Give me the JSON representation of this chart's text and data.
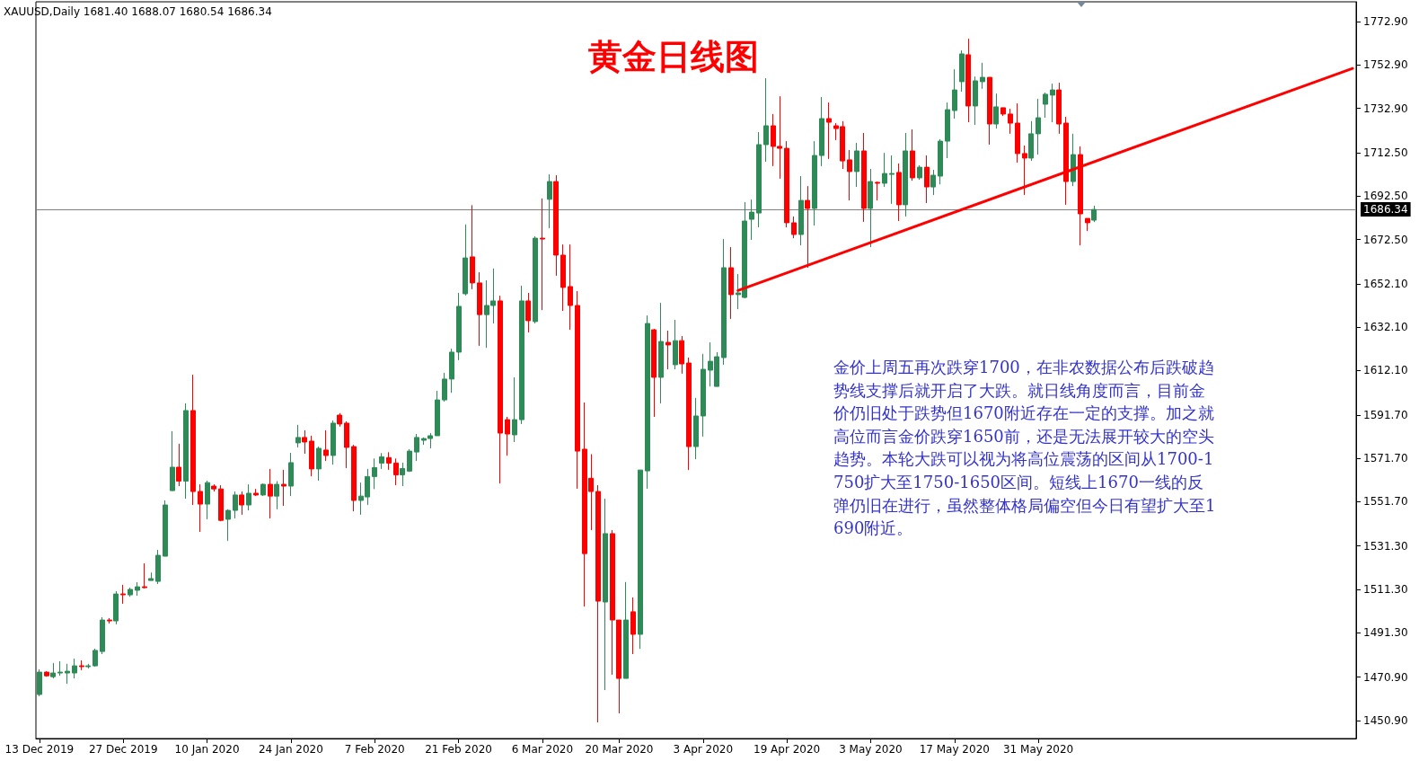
{
  "chart_data": {
    "type": "candlestick",
    "title": "黄金日线图",
    "annotations": [
      "XAUUSD,Daily 1681.40 1688.07 1680.54 1686.34",
      "金价上周五再次跌穿1700，在非农数据公布后跌破趋势线支撑后就开启了大跌。就日线角度而言，目前金价仍旧处于跌势但1670附近存在一定的支撑。加之就高位而言金价跌穿1650前，还是无法展开较大的空头趋势。本轮大跌可以视为将高位震荡的区间从1700-1750扩大至1750-1650区间。短线上1670一线的反弹仍旧在进行，虽然整体格局偏空但今日有望扩大至1690附近。"
    ],
    "categories": [
      "13 Dec 2019",
      null,
      null,
      null,
      null,
      null,
      null,
      null,
      null,
      null,
      null,
      null,
      "27 Dec 2019",
      null,
      null,
      null,
      null,
      null,
      null,
      null,
      null,
      null,
      null,
      null,
      "10 Jan 2020",
      null,
      null,
      null,
      null,
      null,
      null,
      null,
      null,
      null,
      null,
      null,
      "24 Jan 2020",
      null,
      null,
      null,
      null,
      null,
      null,
      null,
      null,
      null,
      null,
      null,
      "7 Feb 2020",
      null,
      null,
      null,
      null,
      null,
      null,
      null,
      null,
      null,
      null,
      null,
      "21 Feb 2020",
      null,
      null,
      null,
      null,
      null,
      null,
      null,
      null,
      null,
      null,
      null,
      "6 Mar 2020",
      null,
      null,
      null,
      null,
      null,
      null,
      null,
      null,
      null,
      null,
      "20 Mar 2020",
      null,
      null,
      null,
      null,
      null,
      null,
      null,
      null,
      null,
      null,
      null,
      "3 Apr 2020",
      null,
      null,
      null,
      null,
      null,
      null,
      null,
      null,
      null,
      null,
      null,
      "19 Apr 2020",
      null,
      null,
      null,
      null,
      null,
      null,
      null,
      null,
      null,
      null,
      null,
      "3 May 2020",
      null,
      null,
      null,
      null,
      null,
      null,
      null,
      null,
      null,
      null,
      null,
      "17 May 2020",
      null,
      null,
      null,
      null,
      null,
      null,
      null,
      null,
      null,
      null,
      null,
      "31 May 2020",
      null,
      null,
      null,
      null,
      null,
      null,
      null,
      null,
      null,
      null,
      null,
      null,
      null,
      null,
      null,
      null,
      null,
      null,
      null,
      null,
      null,
      null,
      null,
      null,
      null,
      null,
      null,
      null,
      null,
      null,
      null,
      null,
      null,
      null,
      null,
      null,
      null,
      null,
      null,
      null,
      null,
      null,
      null,
      null,
      null
    ],
    "ohlc": [
      [
        1462.9,
        1474.5,
        1462.1,
        1473.2
      ],
      [
        1473.2,
        1473.6,
        1471.1,
        1471.5
      ],
      [
        1471.1,
        1477.4,
        1470.3,
        1472.8
      ],
      [
        1472.8,
        1478.2,
        1471.5,
        1473.2
      ],
      [
        1472.8,
        1477.0,
        1467.8,
        1473.6
      ],
      [
        1472.8,
        1479.4,
        1470.3,
        1476.1
      ],
      [
        1476.1,
        1478.6,
        1474.1,
        1475.7
      ],
      [
        1475.7,
        1477.0,
        1474.9,
        1476.1
      ],
      [
        1476.1,
        1484.0,
        1475.7,
        1483.2
      ],
      [
        1482.7,
        1498.5,
        1481.5,
        1497.2
      ],
      [
        1497.2,
        1498.1,
        1495.6,
        1496.8
      ],
      [
        1496.8,
        1510.5,
        1495.2,
        1509.2
      ],
      [
        1509.2,
        1513.4,
        1504.7,
        1508.8
      ],
      [
        1508.8,
        1512.1,
        1507.9,
        1511.3
      ],
      [
        1510.9,
        1514.6,
        1508.4,
        1512.5
      ],
      [
        1512.5,
        1523.3,
        1511.7,
        1512.1
      ],
      [
        1515.4,
        1519.1,
        1515.4,
        1516.3
      ],
      [
        1515.0,
        1529.5,
        1513.8,
        1527.0
      ],
      [
        1526.6,
        1552.3,
        1526.6,
        1550.2
      ],
      [
        1556.8,
        1584.2,
        1556.8,
        1567.6
      ],
      [
        1567.6,
        1578.4,
        1558.9,
        1561.2
      ],
      [
        1561.2,
        1597.0,
        1553.1,
        1593.7
      ],
      [
        1593.7,
        1610.2,
        1550.2,
        1556.4
      ],
      [
        1556.4,
        1559.7,
        1537.8,
        1550.6
      ],
      [
        1550.6,
        1561.4,
        1543.6,
        1560.5
      ],
      [
        1558.9,
        1559.7,
        1556.4,
        1557.6
      ],
      [
        1557.6,
        1559.3,
        1542.7,
        1543.1
      ],
      [
        1543.6,
        1548.2,
        1533.7,
        1547.7
      ],
      [
        1547.7,
        1556.4,
        1544.0,
        1554.8
      ],
      [
        1554.8,
        1556.4,
        1545.7,
        1550.2
      ],
      [
        1550.2,
        1559.7,
        1547.7,
        1555.6
      ],
      [
        1555.6,
        1557.6,
        1554.3,
        1554.8
      ],
      [
        1554.8,
        1560.1,
        1554.3,
        1559.7
      ],
      [
        1559.7,
        1566.8,
        1544.0,
        1554.3
      ],
      [
        1554.3,
        1561.2,
        1548.2,
        1559.7
      ],
      [
        1559.7,
        1566.4,
        1549.8,
        1558.9
      ],
      [
        1558.9,
        1574.2,
        1554.3,
        1569.7
      ],
      [
        1578.8,
        1587.1,
        1576.7,
        1581.3
      ],
      [
        1581.3,
        1584.6,
        1573.8,
        1579.2
      ],
      [
        1579.6,
        1582.1,
        1563.4,
        1566.8
      ],
      [
        1566.8,
        1577.1,
        1561.4,
        1576.3
      ],
      [
        1575.5,
        1584.6,
        1570.5,
        1573.0
      ],
      [
        1573.0,
        1589.1,
        1568.8,
        1587.9
      ],
      [
        1591.6,
        1592.5,
        1586.3,
        1587.5
      ],
      [
        1587.9,
        1588.7,
        1567.2,
        1576.7
      ],
      [
        1577.1,
        1577.9,
        1547.3,
        1552.3
      ],
      [
        1552.3,
        1560.5,
        1545.7,
        1554.3
      ],
      [
        1553.9,
        1566.8,
        1550.2,
        1563.3
      ],
      [
        1563.3,
        1571.6,
        1557.5,
        1567.4
      ],
      [
        1569.5,
        1574.1,
        1566.8,
        1572.4
      ],
      [
        1572.0,
        1574.5,
        1566.4,
        1569.5
      ],
      [
        1569.5,
        1571.6,
        1559.3,
        1564.1
      ],
      [
        1564.1,
        1569.7,
        1558.9,
        1567.0
      ],
      [
        1565.8,
        1575.9,
        1565.4,
        1575.0
      ],
      [
        1574.6,
        1582.9,
        1570.5,
        1581.3
      ],
      [
        1580.0,
        1581.3,
        1577.9,
        1580.8
      ],
      [
        1580.8,
        1583.3,
        1576.3,
        1582.1
      ],
      [
        1582.1,
        1602.8,
        1582.1,
        1598.6
      ],
      [
        1598.6,
        1611.1,
        1597.8,
        1608.2
      ],
      [
        1608.2,
        1622.2,
        1601.9,
        1620.6
      ],
      [
        1620.6,
        1647.9,
        1616.9,
        1641.7
      ],
      [
        1647.5,
        1679.4,
        1646.7,
        1664.0
      ],
      [
        1664.5,
        1688.3,
        1649.6,
        1652.5
      ],
      [
        1652.5,
        1657.4,
        1623.5,
        1637.9
      ],
      [
        1637.9,
        1653.7,
        1622.6,
        1642.1
      ],
      [
        1642.1,
        1659.1,
        1633.8,
        1644.2
      ],
      [
        1644.2,
        1646.6,
        1560.1,
        1583.3
      ],
      [
        1589.5,
        1590.8,
        1572.9,
        1582.9
      ],
      [
        1582.5,
        1609.0,
        1579.2,
        1589.5
      ],
      [
        1589.5,
        1651.2,
        1587.5,
        1644.2
      ],
      [
        1644.2,
        1647.9,
        1629.7,
        1635.1
      ],
      [
        1634.7,
        1674.0,
        1633.8,
        1673.1
      ],
      [
        1673.1,
        1691.4,
        1640.0,
        1672.7
      ],
      [
        1691.0,
        1702.5,
        1677.7,
        1699.2
      ],
      [
        1699.2,
        1702.1,
        1655.8,
        1665.3
      ],
      [
        1665.3,
        1670.2,
        1639.6,
        1650.4
      ],
      [
        1650.8,
        1670.2,
        1630.9,
        1642.1
      ],
      [
        1642.1,
        1648.7,
        1557.7,
        1575.0
      ],
      [
        1575.9,
        1597.4,
        1503.4,
        1527.8
      ],
      [
        1562.5,
        1573.6,
        1538.6,
        1556.4
      ],
      [
        1556.4,
        1559.3,
        1450.0,
        1505.9
      ],
      [
        1505.5,
        1553.1,
        1464.9,
        1537.0
      ],
      [
        1537.0,
        1538.6,
        1472.0,
        1497.2
      ],
      [
        1497.2,
        1497.2,
        1454.2,
        1470.3
      ],
      [
        1470.3,
        1514.7,
        1470.3,
        1497.2
      ],
      [
        1501.0,
        1507.6,
        1481.5,
        1490.6
      ],
      [
        1490.6,
        1566.3,
        1483.9,
        1566.3
      ],
      [
        1565.9,
        1637.5,
        1557.7,
        1633.8
      ],
      [
        1630.9,
        1631.3,
        1590.8,
        1609.0
      ],
      [
        1609.0,
        1643.3,
        1597.0,
        1625.5
      ],
      [
        1625.1,
        1630.5,
        1612.7,
        1623.9
      ],
      [
        1614.8,
        1635.5,
        1612.7,
        1625.9
      ],
      [
        1625.9,
        1628.0,
        1610.7,
        1615.2
      ],
      [
        1615.6,
        1618.1,
        1566.3,
        1577.1
      ],
      [
        1577.1,
        1599.5,
        1571.3,
        1591.2
      ],
      [
        1591.2,
        1619.8,
        1581.7,
        1612.7
      ],
      [
        1612.3,
        1625.1,
        1604.8,
        1616.4
      ],
      [
        1604.8,
        1620.6,
        1604.8,
        1618.5
      ],
      [
        1618.1,
        1672.7,
        1614.8,
        1659.5
      ],
      [
        1659.5,
        1669.0,
        1635.9,
        1647.1
      ],
      [
        1647.1,
        1656.6,
        1640.4,
        1647.9
      ],
      [
        1645.8,
        1689.7,
        1645.4,
        1681.0
      ],
      [
        1681.8,
        1690.9,
        1672.3,
        1685.1
      ],
      [
        1684.7,
        1722.0,
        1678.1,
        1716.2
      ],
      [
        1716.2,
        1746.8,
        1708.3,
        1724.9
      ],
      [
        1724.9,
        1730.3,
        1706.3,
        1715.4
      ],
      [
        1715.4,
        1738.5,
        1700.5,
        1714.5
      ],
      [
        1714.5,
        1717.8,
        1678.1,
        1680.2
      ],
      [
        1680.2,
        1683.1,
        1673.1,
        1674.8
      ],
      [
        1674.8,
        1701.7,
        1669.8,
        1690.5
      ],
      [
        1690.5,
        1697.1,
        1659.5,
        1686.8
      ],
      [
        1686.8,
        1717.8,
        1678.9,
        1711.2
      ],
      [
        1711.2,
        1738.1,
        1706.3,
        1728.2
      ],
      [
        1728.2,
        1735.6,
        1709.6,
        1726.5
      ],
      [
        1724.9,
        1726.1,
        1718.3,
        1723.6
      ],
      [
        1724.5,
        1727.0,
        1705.0,
        1708.7
      ],
      [
        1709.2,
        1713.7,
        1690.5,
        1703.8
      ],
      [
        1703.8,
        1717.0,
        1696.7,
        1713.3
      ],
      [
        1713.3,
        1721.6,
        1680.6,
        1686.8
      ],
      [
        1686.8,
        1705.0,
        1669.0,
        1699.2
      ],
      [
        1698.8,
        1699.2,
        1690.5,
        1698.4
      ],
      [
        1698.4,
        1712.4,
        1696.7,
        1702.9
      ],
      [
        1702.5,
        1711.2,
        1688.9,
        1702.9
      ],
      [
        1703.4,
        1707.5,
        1681.0,
        1688.5
      ],
      [
        1688.5,
        1721.6,
        1683.1,
        1713.3
      ],
      [
        1713.3,
        1723.2,
        1699.6,
        1700.9
      ],
      [
        1700.9,
        1706.7,
        1700.0,
        1705.8
      ],
      [
        1705.8,
        1711.2,
        1689.3,
        1696.7
      ],
      [
        1696.7,
        1704.6,
        1693.0,
        1702.1
      ],
      [
        1701.7,
        1718.7,
        1697.9,
        1717.8
      ],
      [
        1717.8,
        1735.6,
        1710.0,
        1732.3
      ],
      [
        1731.9,
        1750.9,
        1728.2,
        1741.4
      ],
      [
        1745.2,
        1759.6,
        1740.6,
        1758.0
      ],
      [
        1757.6,
        1765.0,
        1726.5,
        1734.0
      ],
      [
        1734.0,
        1747.6,
        1725.3,
        1745.6
      ],
      [
        1745.2,
        1753.9,
        1741.9,
        1747.2
      ],
      [
        1747.2,
        1747.2,
        1716.2,
        1725.7
      ],
      [
        1725.7,
        1739.7,
        1723.6,
        1733.6
      ],
      [
        1733.2,
        1733.2,
        1729.4,
        1730.3
      ],
      [
        1730.3,
        1732.7,
        1721.2,
        1726.1
      ],
      [
        1726.1,
        1735.2,
        1707.9,
        1712.1
      ],
      [
        1712.1,
        1715.8,
        1693.0,
        1710.0
      ],
      [
        1710.0,
        1727.0,
        1708.7,
        1721.2
      ],
      [
        1721.2,
        1737.3,
        1711.6,
        1728.6
      ],
      [
        1734.8,
        1740.2,
        1728.6,
        1739.4
      ],
      [
        1739.0,
        1744.3,
        1726.5,
        1741.4
      ],
      [
        1741.4,
        1744.7,
        1721.2,
        1725.7
      ],
      [
        1726.1,
        1729.0,
        1688.5,
        1699.2
      ],
      [
        1699.2,
        1721.2,
        1697.1,
        1711.6
      ],
      [
        1711.6,
        1715.4,
        1669.8,
        1684.3
      ],
      [
        1682.2,
        1682.2,
        1676.4,
        1680.2
      ],
      [
        1681.4,
        1688.07,
        1680.54,
        1686.34
      ],
      null,
      null,
      null,
      null,
      null,
      null,
      null,
      null,
      null,
      null,
      null,
      null,
      null,
      null,
      null,
      null,
      null,
      null,
      null,
      null,
      null,
      null,
      null,
      null,
      null,
      null,
      null,
      null,
      null,
      null,
      null,
      null,
      null,
      null,
      null,
      null,
      null
    ],
    "colors": [
      "#2e8b57",
      "#ff0000",
      "#2e8b57",
      "#2e8b57",
      "#2e8b57",
      "#2e8b57",
      "#ff0000",
      "#2e8b57",
      "#2e8b57",
      "#2e8b57",
      "#ff0000",
      "#2e8b57",
      "#ff0000",
      "#2e8b57",
      "#2e8b57",
      "#ff0000",
      "#2e8b57",
      "#2e8b57",
      "#2e8b57",
      "#2e8b57",
      "#ff0000",
      "#2e8b57",
      "#ff0000",
      "#ff0000",
      "#2e8b57",
      "#ff0000",
      "#ff0000",
      "#2e8b57",
      "#2e8b57",
      "#ff0000",
      "#2e8b57",
      "#ff0000",
      "#2e8b57",
      "#ff0000",
      "#2e8b57",
      "#ff0000",
      "#2e8b57",
      "#2e8b57",
      "#ff0000",
      "#ff0000",
      "#2e8b57",
      "#ff0000",
      "#2e8b57",
      "#ff0000",
      "#ff0000",
      "#ff0000",
      "#2e8b57",
      "#2e8b57",
      "#2e8b57",
      "#2e8b57",
      "#ff0000",
      "#ff0000",
      "#2e8b57",
      "#2e8b57",
      "#2e8b57",
      "#2e8b57",
      "#2e8b57",
      "#2e8b57",
      "#2e8b57",
      "#2e8b57",
      "#2e8b57",
      "#2e8b57",
      "#ff0000",
      "#ff0000",
      "#2e8b57",
      "#2e8b57",
      "#ff0000",
      "#ff0000",
      "#2e8b57",
      "#2e8b57",
      "#ff0000",
      "#2e8b57",
      "#ff0000",
      "#2e8b57",
      "#ff0000",
      "#ff0000",
      "#ff0000",
      "#ff0000",
      "#ff0000",
      "#ff0000",
      "#ff0000",
      "#2e8b57",
      "#ff0000",
      "#ff0000",
      "#2e8b57",
      "#ff0000",
      "#2e8b57",
      "#2e8b57",
      "#ff0000",
      "#2e8b57",
      "#ff0000",
      "#2e8b57",
      "#ff0000",
      "#ff0000",
      "#2e8b57",
      "#2e8b57",
      "#2e8b57",
      "#2e8b57",
      "#2e8b57",
      "#ff0000",
      "#2e8b57",
      "#2e8b57",
      "#2e8b57",
      "#2e8b57",
      "#2e8b57",
      "#ff0000",
      "#ff0000",
      "#ff0000",
      "#ff0000",
      "#2e8b57",
      "#ff0000",
      "#2e8b57",
      "#2e8b57",
      "#ff0000",
      "#ff0000",
      "#ff0000",
      "#ff0000",
      "#2e8b57",
      "#ff0000",
      "#2e8b57",
      "#ff0000",
      "#2e8b57",
      "#2e8b57",
      "#ff0000",
      "#2e8b57",
      "#ff0000",
      "#2e8b57",
      "#ff0000",
      "#2e8b57",
      "#2e8b57",
      "#2e8b57",
      "#2e8b57",
      "#2e8b57",
      "#ff0000",
      "#2e8b57",
      "#2e8b57",
      "#ff0000",
      "#2e8b57",
      "#ff0000",
      "#ff0000",
      "#ff0000",
      "#ff0000",
      "#2e8b57",
      "#2e8b57",
      "#2e8b57",
      "#2e8b57",
      "#ff0000",
      "#ff0000",
      "#2e8b57",
      "#ff0000",
      "#ff0000",
      "#2e8b57",
      null,
      null,
      null,
      null,
      null,
      null,
      null,
      null,
      null,
      null,
      null,
      null,
      null,
      null,
      null,
      null,
      null,
      null,
      null,
      null,
      null,
      null,
      null,
      null,
      null,
      null,
      null,
      null,
      null,
      null,
      null,
      null,
      null,
      null,
      null,
      null,
      null
    ],
    "series": [
      {
        "type": "line",
        "color": "#ff0000",
        "values": [
          null,
          null,
          null,
          null,
          null,
          null,
          null,
          null,
          null,
          null,
          null,
          null,
          null,
          null,
          null,
          null,
          null,
          null,
          null,
          null,
          null,
          null,
          null,
          null,
          null,
          null,
          null,
          null,
          null,
          null,
          null,
          null,
          null,
          null,
          null,
          null,
          null,
          null,
          null,
          null,
          null,
          null,
          null,
          null,
          null,
          null,
          null,
          null,
          null,
          null,
          null,
          null,
          null,
          null,
          null,
          null,
          null,
          null,
          null,
          null,
          null,
          null,
          null,
          null,
          null,
          null,
          null,
          null,
          null,
          null,
          null,
          null,
          null,
          null,
          null,
          null,
          null,
          null,
          null,
          null,
          null,
          null,
          null,
          null,
          null,
          null,
          null,
          null,
          null,
          null,
          null,
          null,
          null,
          null,
          null,
          null,
          null,
          null,
          null,
          null,
          1649.0,
          null,
          null,
          null,
          null,
          null,
          null,
          null,
          null,
          null,
          null,
          null,
          null,
          null,
          null,
          null,
          null,
          null,
          null,
          null,
          null,
          null,
          null,
          null,
          null,
          null,
          null,
          null,
          null,
          null,
          null,
          null,
          null,
          null,
          null,
          null,
          null,
          null,
          null,
          null,
          null,
          null,
          null,
          null,
          null,
          null,
          null,
          null,
          null,
          null,
          null,
          null,
          null,
          null,
          null,
          null,
          null,
          null,
          null,
          null,
          null,
          null,
          null,
          null,
          null,
          null,
          null,
          null,
          null,
          null,
          null,
          null,
          null,
          null,
          null,
          null,
          null,
          null,
          null,
          null,
          null,
          null,
          null,
          null,
          null,
          null,
          null,
          null,
          1751.3
        ]
      }
    ],
    "ylim": [
      1442.6,
      1782.0
    ],
    "yticks": [
      {
        "value": 1450.9,
        "label": "1450.90"
      },
      {
        "value": 1470.9,
        "label": "1470.90"
      },
      {
        "value": 1491.3,
        "label": "1491.30"
      },
      {
        "value": 1511.3,
        "label": "1511.30"
      },
      {
        "value": 1531.3,
        "label": "1531.30"
      },
      {
        "value": 1551.7,
        "label": "1551.70"
      },
      {
        "value": 1571.7,
        "label": "1571.70"
      },
      {
        "value": 1591.7,
        "label": "1591.70"
      },
      {
        "value": 1612.1,
        "label": "1612.10"
      },
      {
        "value": 1632.1,
        "label": "1632.10"
      },
      {
        "value": 1652.1,
        "label": "1652.10"
      },
      {
        "value": 1672.5,
        "label": "1672.50"
      },
      {
        "value": 1692.5,
        "label": "1692.50"
      },
      {
        "value": 1712.5,
        "label": "1712.50"
      },
      {
        "value": 1732.9,
        "label": "1732.90"
      },
      {
        "value": 1752.9,
        "label": "1752.90"
      },
      {
        "value": 1772.9,
        "label": "1772.90"
      }
    ],
    "ref_lines": [
      {
        "axis": "y",
        "value": 1686.34,
        "label": "1686.34",
        "color": "#808080"
      }
    ],
    "grid": false
  }
}
